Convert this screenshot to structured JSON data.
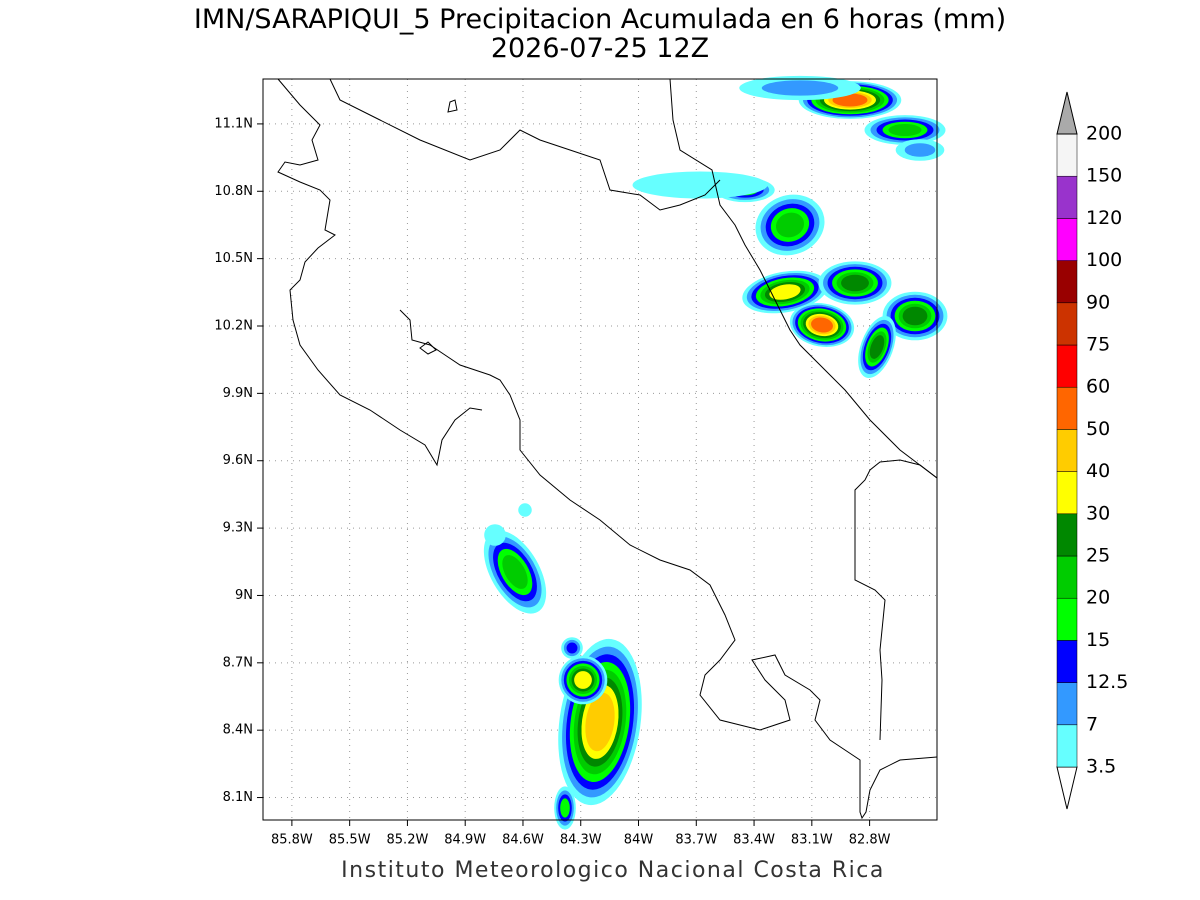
{
  "title": "IMN/SARAPIQUI_5 Precipitacion Acumulada en 6 horas (mm)",
  "subtitle": "2026-07-25 12Z",
  "footer": "Instituto Meteorologico Nacional Costa Rica",
  "map": {
    "lonlim": [
      -85.95,
      -82.45
    ],
    "latlim": [
      8.0,
      11.3
    ],
    "lon_ticks": [
      {
        "value": -85.8,
        "label": "85.8W"
      },
      {
        "value": -85.5,
        "label": "85.5W"
      },
      {
        "value": -85.2,
        "label": "85.2W"
      },
      {
        "value": -84.9,
        "label": "84.9W"
      },
      {
        "value": -84.6,
        "label": "84.6W"
      },
      {
        "value": -84.3,
        "label": "84.3W"
      },
      {
        "value": -84,
        "label": "84W"
      },
      {
        "value": -83.7,
        "label": "83.7W"
      },
      {
        "value": -83.4,
        "label": "83.4W"
      },
      {
        "value": -83.1,
        "label": "83.1W"
      },
      {
        "value": -82.8,
        "label": "82.8W"
      }
    ],
    "lat_ticks": [
      {
        "value": 8.1,
        "label": "8.1N"
      },
      {
        "value": 8.4,
        "label": "8.4N"
      },
      {
        "value": 8.7,
        "label": "8.7N"
      },
      {
        "value": 9,
        "label": "9N"
      },
      {
        "value": 9.3,
        "label": "9.3N"
      },
      {
        "value": 9.6,
        "label": "9.6N"
      },
      {
        "value": 9.9,
        "label": "9.9N"
      },
      {
        "value": 10.2,
        "label": "10.2N"
      },
      {
        "value": 10.5,
        "label": "10.5N"
      },
      {
        "value": 10.8,
        "label": "10.8N"
      },
      {
        "value": 11.1,
        "label": "11.1N"
      }
    ]
  },
  "colorbar": {
    "levels": [
      3.5,
      7,
      12.5,
      15,
      20,
      25,
      30,
      40,
      50,
      60,
      75,
      90,
      100,
      120,
      150,
      200
    ],
    "colors": [
      "#66ffff",
      "#3399ff",
      "#0000ff",
      "#00ff00",
      "#00cc00",
      "#008800",
      "#ffff00",
      "#ffcc00",
      "#ff6600",
      "#ff0000",
      "#cc3300",
      "#990000",
      "#ff00ff",
      "#9933cc",
      "#f5f5f5"
    ],
    "under_color": "#ffffff",
    "over_color": "#aaaaaa"
  }
}
